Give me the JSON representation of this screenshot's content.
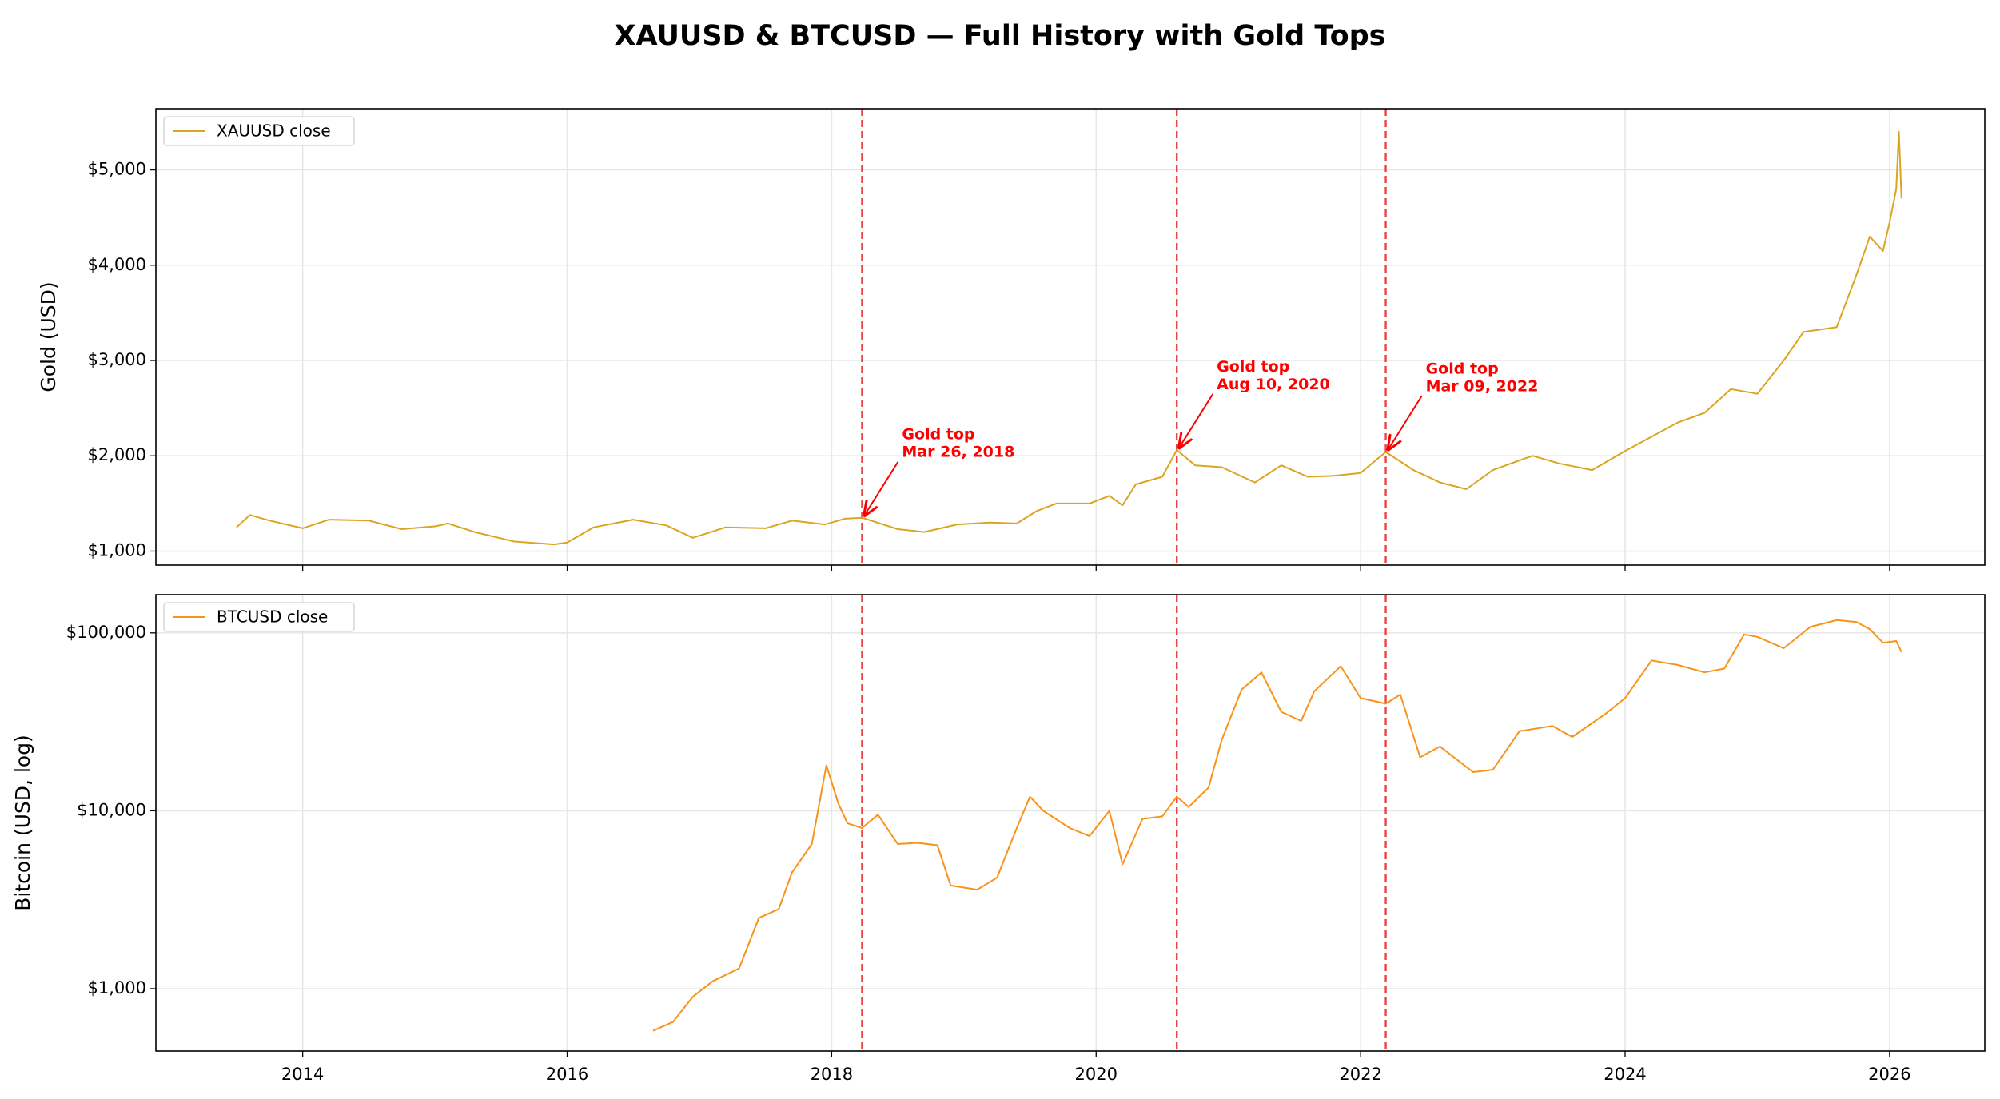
{
  "title": "XAUUSD & BTCUSD — Full History with Gold Tops",
  "chart_data": [
    {
      "type": "line",
      "ylabel": "Gold (USD)",
      "legend": "upper left",
      "grid": true,
      "log": false,
      "xlim": [
        2012.89,
        2026.72
      ],
      "xticks": [
        2014,
        2016,
        2018,
        2020,
        2022,
        2024,
        2026
      ],
      "ylim": [
        853,
        5642
      ],
      "yticks": [
        {
          "value": 1000,
          "label": "$1,000"
        },
        {
          "value": 2000,
          "label": "$2,000"
        },
        {
          "value": 3000,
          "label": "$3,000"
        },
        {
          "value": 4000,
          "label": "$4,000"
        },
        {
          "value": 5000,
          "label": "$5,000"
        }
      ],
      "x": [
        2013.5,
        2013.6,
        2013.75,
        2014.0,
        2014.2,
        2014.5,
        2014.75,
        2015.0,
        2015.1,
        2015.3,
        2015.6,
        2015.9,
        2016.0,
        2016.2,
        2016.5,
        2016.75,
        2016.95,
        2017.2,
        2017.5,
        2017.7,
        2017.95,
        2018.1,
        2018.23,
        2018.5,
        2018.7,
        2018.95,
        2019.2,
        2019.4,
        2019.55,
        2019.7,
        2019.95,
        2020.1,
        2020.2,
        2020.3,
        2020.5,
        2020.61,
        2020.75,
        2020.95,
        2021.2,
        2021.4,
        2021.6,
        2021.8,
        2022.0,
        2022.19,
        2022.4,
        2022.6,
        2022.8,
        2023.0,
        2023.3,
        2023.5,
        2023.75,
        2024.0,
        2024.2,
        2024.4,
        2024.6,
        2024.8,
        2025.0,
        2025.2,
        2025.35,
        2025.6,
        2025.75,
        2025.85,
        2025.95,
        2026.0,
        2026.05,
        2026.07,
        2026.09
      ],
      "series": [
        {
          "name": "XAUUSD close",
          "color": "#daa520",
          "values": [
            1250,
            1380,
            1320,
            1240,
            1330,
            1320,
            1230,
            1260,
            1290,
            1200,
            1100,
            1070,
            1090,
            1250,
            1330,
            1270,
            1140,
            1250,
            1240,
            1320,
            1280,
            1340,
            1350,
            1230,
            1200,
            1280,
            1300,
            1290,
            1420,
            1500,
            1500,
            1580,
            1480,
            1700,
            1780,
            2060,
            1900,
            1880,
            1720,
            1900,
            1780,
            1790,
            1820,
            2040,
            1850,
            1720,
            1650,
            1850,
            2000,
            1920,
            1850,
            2050,
            2200,
            2350,
            2450,
            2700,
            2650,
            3000,
            3300,
            3350,
            3900,
            4300,
            4150,
            4450,
            4800,
            5400,
            4700
          ]
        }
      ],
      "annotations": [
        {
          "text": "Gold top",
          "date": "Mar 26, 2018",
          "x": 2018.23,
          "y": 1350
        },
        {
          "text": "Gold top",
          "date": "Aug 10, 2020",
          "x": 2020.61,
          "y": 2060
        },
        {
          "text": "Gold top",
          "date": "Mar 09, 2022",
          "x": 2022.19,
          "y": 2040
        }
      ],
      "vline_color": "#e8312f"
    },
    {
      "type": "line",
      "ylabel": "Bitcoin (USD, log)",
      "legend": "upper left",
      "grid": true,
      "log": true,
      "xlim": [
        2012.89,
        2026.72
      ],
      "xticks": [
        2014,
        2016,
        2018,
        2020,
        2022,
        2024,
        2026
      ],
      "ylim": [
        446,
        164000
      ],
      "yticks": [
        {
          "value": 1000,
          "label": "$1,000"
        },
        {
          "value": 10000,
          "label": "$10,000"
        },
        {
          "value": 100000,
          "label": "$100,000"
        }
      ],
      "x": [
        2016.65,
        2016.8,
        2016.95,
        2017.1,
        2017.3,
        2017.45,
        2017.6,
        2017.7,
        2017.85,
        2017.96,
        2018.05,
        2018.12,
        2018.23,
        2018.35,
        2018.5,
        2018.65,
        2018.8,
        2018.9,
        2019.1,
        2019.25,
        2019.4,
        2019.5,
        2019.6,
        2019.8,
        2019.95,
        2020.1,
        2020.2,
        2020.35,
        2020.5,
        2020.61,
        2020.7,
        2020.85,
        2020.95,
        2021.1,
        2021.25,
        2021.4,
        2021.55,
        2021.65,
        2021.85,
        2022.0,
        2022.19,
        2022.3,
        2022.45,
        2022.6,
        2022.85,
        2023.0,
        2023.2,
        2023.45,
        2023.6,
        2023.85,
        2024.0,
        2024.2,
        2024.4,
        2024.6,
        2024.75,
        2024.9,
        2025.0,
        2025.2,
        2025.4,
        2025.6,
        2025.75,
        2025.85,
        2025.95,
        2026.05,
        2026.09
      ],
      "series": [
        {
          "name": "BTCUSD close",
          "color": "#f7931a",
          "values": [
            580,
            650,
            900,
            1100,
            1300,
            2500,
            2800,
            4500,
            6500,
            18000,
            11000,
            8500,
            8000,
            9500,
            6500,
            6600,
            6400,
            3800,
            3600,
            4200,
            8000,
            12000,
            10000,
            8000,
            7200,
            10000,
            5000,
            9000,
            9300,
            12000,
            10500,
            13500,
            25000,
            48000,
            60000,
            36000,
            32000,
            47000,
            65000,
            43000,
            40000,
            45000,
            20000,
            23000,
            16500,
            17000,
            28000,
            30000,
            26000,
            35000,
            43000,
            70000,
            66000,
            60000,
            63000,
            98000,
            95000,
            82000,
            108000,
            118000,
            115000,
            105000,
            88000,
            90000,
            78000
          ]
        }
      ]
    }
  ]
}
